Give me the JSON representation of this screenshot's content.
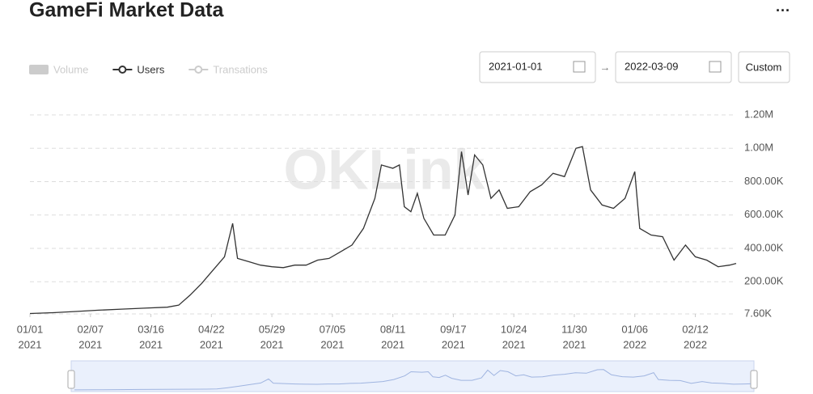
{
  "chart_data": {
    "type": "line",
    "title": "GameFi Market Data",
    "more": "···",
    "watermark": "OKLink",
    "legend": [
      {
        "name": "Volume",
        "symbol": "rect",
        "active": false
      },
      {
        "name": "Users",
        "symbol": "line",
        "active": true
      },
      {
        "name": "Transations",
        "symbol": "line",
        "active": false
      }
    ],
    "controls": {
      "start_date": "2021-01-01",
      "arrow": "→",
      "end_date": "2022-03-09",
      "button": "Custom"
    },
    "x": [
      "2021-01-01",
      "2021-01-15",
      "2021-01-29",
      "2021-02-12",
      "2021-02-26",
      "2021-03-12",
      "2021-03-26",
      "2021-04-02",
      "2021-04-09",
      "2021-04-16",
      "2021-04-23",
      "2021-04-30",
      "2021-05-05",
      "2021-05-08",
      "2021-05-15",
      "2021-05-22",
      "2021-05-29",
      "2021-06-05",
      "2021-06-12",
      "2021-06-19",
      "2021-06-26",
      "2021-07-03",
      "2021-07-10",
      "2021-07-17",
      "2021-07-24",
      "2021-07-31",
      "2021-08-04",
      "2021-08-11",
      "2021-08-15",
      "2021-08-18",
      "2021-08-22",
      "2021-08-26",
      "2021-08-30",
      "2021-09-05",
      "2021-09-12",
      "2021-09-18",
      "2021-09-22",
      "2021-09-26",
      "2021-09-30",
      "2021-10-05",
      "2021-10-10",
      "2021-10-15",
      "2021-10-20",
      "2021-10-27",
      "2021-11-03",
      "2021-11-10",
      "2021-11-17",
      "2021-11-24",
      "2021-12-01",
      "2021-12-05",
      "2021-12-10",
      "2021-12-17",
      "2021-12-24",
      "2021-12-31",
      "2022-01-06",
      "2022-01-09",
      "2022-01-16",
      "2022-01-23",
      "2022-01-30",
      "2022-02-06",
      "2022-02-12",
      "2022-02-19",
      "2022-02-26",
      "2022-03-05",
      "2022-03-09"
    ],
    "series": [
      {
        "name": "Users",
        "color": "#333333",
        "values": [
          10000,
          15000,
          22000,
          30000,
          36000,
          42000,
          48000,
          60000,
          120000,
          190000,
          270000,
          350000,
          550000,
          340000,
          320000,
          300000,
          290000,
          285000,
          300000,
          300000,
          330000,
          340000,
          380000,
          420000,
          520000,
          700000,
          900000,
          880000,
          900000,
          650000,
          620000,
          730000,
          580000,
          480000,
          480000,
          600000,
          980000,
          720000,
          960000,
          900000,
          700000,
          750000,
          640000,
          650000,
          740000,
          780000,
          850000,
          830000,
          1000000,
          1010000,
          750000,
          660000,
          640000,
          700000,
          860000,
          520000,
          480000,
          470000,
          330000,
          420000,
          350000,
          330000,
          290000,
          300000,
          310000
        ]
      }
    ],
    "xlim": [
      "2021-01-01",
      "2022-03-09"
    ],
    "xticks": [
      {
        "value": "2021-01-01",
        "label": "01/01",
        "year": "2021"
      },
      {
        "value": "2021-02-07",
        "label": "02/07",
        "year": "2021"
      },
      {
        "value": "2021-03-16",
        "label": "03/16",
        "year": "2021"
      },
      {
        "value": "2021-04-22",
        "label": "04/22",
        "year": "2021"
      },
      {
        "value": "2021-05-29",
        "label": "05/29",
        "year": "2021"
      },
      {
        "value": "2021-07-05",
        "label": "07/05",
        "year": "2021"
      },
      {
        "value": "2021-08-11",
        "label": "08/11",
        "year": "2021"
      },
      {
        "value": "2021-09-17",
        "label": "09/17",
        "year": "2021"
      },
      {
        "value": "2021-10-24",
        "label": "10/24",
        "year": "2021"
      },
      {
        "value": "2021-11-30",
        "label": "11/30",
        "year": "2021"
      },
      {
        "value": "2022-01-06",
        "label": "01/06",
        "year": "2022"
      },
      {
        "value": "2022-02-12",
        "label": "02/12",
        "year": "2022"
      }
    ],
    "ylim": [
      7600,
      1200000
    ],
    "yticks": [
      {
        "value": 7600,
        "label": "7.60K"
      },
      {
        "value": 200000,
        "label": "200.00K"
      },
      {
        "value": 400000,
        "label": "400.00K"
      },
      {
        "value": 600000,
        "label": "600.00K"
      },
      {
        "value": 800000,
        "label": "800.00K"
      },
      {
        "value": 1000000,
        "label": "1.00M"
      },
      {
        "value": 1200000,
        "label": "1.20M"
      }
    ],
    "grid": true
  }
}
